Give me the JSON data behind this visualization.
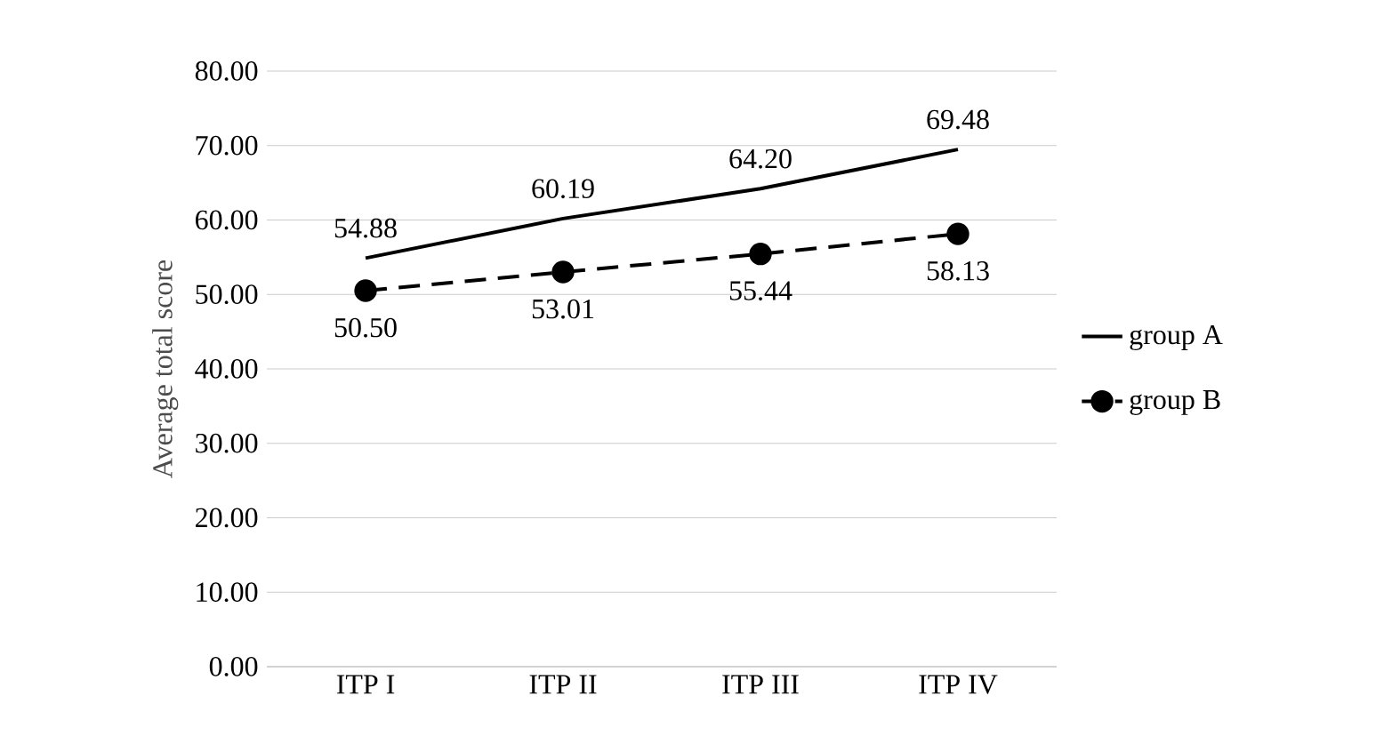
{
  "chart_data": {
    "type": "line",
    "ylabel": "Average total score",
    "categories": [
      "ITP I",
      "ITP II",
      "ITP III",
      "ITP IV"
    ],
    "ylim": [
      0,
      80
    ],
    "yticks": [
      {
        "value": 0,
        "label": "0.00"
      },
      {
        "value": 10,
        "label": "10.00"
      },
      {
        "value": 20,
        "label": "20.00"
      },
      {
        "value": 30,
        "label": "30.00"
      },
      {
        "value": 40,
        "label": "40.00"
      },
      {
        "value": 50,
        "label": "50.00"
      },
      {
        "value": 60,
        "label": "60.00"
      },
      {
        "value": 70,
        "label": "70.00"
      },
      {
        "value": 80,
        "label": "80.00"
      }
    ],
    "grid": "y",
    "legend": "right",
    "series": [
      {
        "name": "group A",
        "color": "#000000",
        "values": [
          54.88,
          60.19,
          64.2,
          69.48
        ],
        "value_labels": [
          "54.88",
          "60.19",
          "64.20",
          "69.48"
        ],
        "line_style": "solid",
        "marker": "none"
      },
      {
        "name": "group B",
        "color": "#000000",
        "values": [
          50.5,
          53.01,
          55.44,
          58.13
        ],
        "value_labels": [
          "50.50",
          "53.01",
          "55.44",
          "58.13"
        ],
        "line_style": "dashed",
        "marker": "circle"
      }
    ]
  }
}
